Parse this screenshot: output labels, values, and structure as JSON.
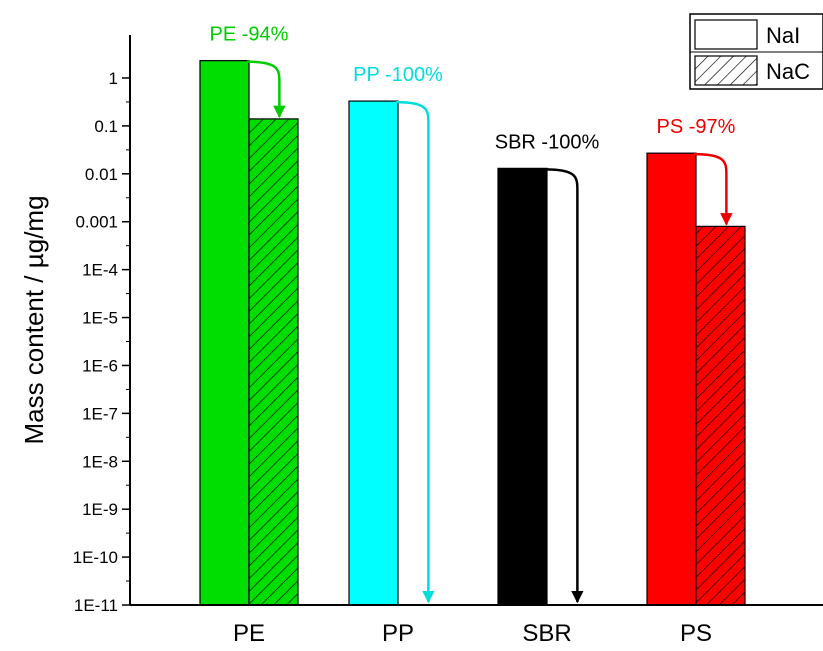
{
  "chart_data": {
    "type": "bar",
    "title": "",
    "xlabel": "",
    "ylabel": "Mass content / µg/mg",
    "yscale": "log",
    "ylim": [
      1e-11,
      1
    ],
    "y_ticks": [
      1e-11,
      1e-10,
      1e-09,
      1e-08,
      1e-07,
      1e-06,
      1e-05,
      0.0001,
      0.001,
      0.01,
      0.1,
      1
    ],
    "y_tick_labels": [
      "1E-11",
      "1E-10",
      "1E-9",
      "1E-8",
      "1E-7",
      "1E-6",
      "1E-5",
      "1E-4",
      "0.001",
      "0.01",
      "0.1",
      "1"
    ],
    "categories": [
      "PE",
      "PP",
      "SBR",
      "PS"
    ],
    "category_colors": [
      "#00dd00",
      "#00ffff",
      "#000000",
      "#ff0000"
    ],
    "series": [
      {
        "name": "NaI",
        "pattern": "solid",
        "values": [
          2.3,
          0.33,
          0.013,
          0.027
        ]
      },
      {
        "name": "NaC",
        "pattern": "hatched",
        "values": [
          0.14,
          null,
          null,
          0.0008
        ]
      }
    ],
    "annotations": [
      {
        "category": "PE",
        "text": "PE -94%",
        "color": "#00cc00"
      },
      {
        "category": "PP",
        "text": "PP -100%",
        "color": "#00dddd"
      },
      {
        "category": "SBR",
        "text": "SBR -100%",
        "color": "#000000"
      },
      {
        "category": "PS",
        "text": "PS -97%",
        "color": "#ee0000"
      }
    ],
    "legend": {
      "position": "top-right",
      "entries": [
        "NaI",
        "NaC"
      ]
    },
    "grid": false
  }
}
